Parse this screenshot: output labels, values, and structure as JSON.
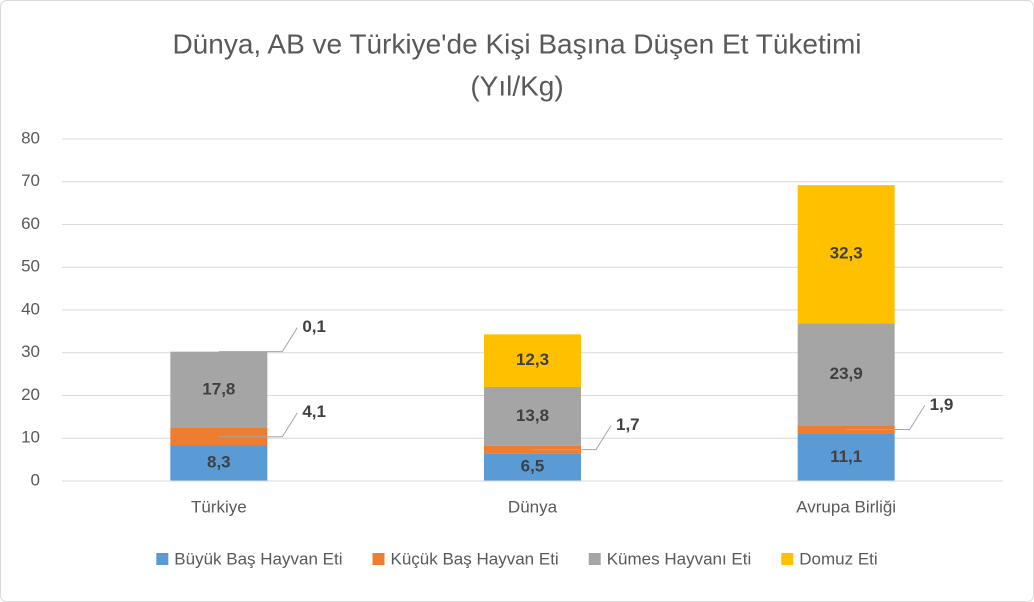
{
  "chart_data": {
    "type": "stacked_bar",
    "title": [
      "Dünya, AB ve Türkiye'de Kişi Başına Düşen Et Tüketimi",
      "(Yıl/Kg)"
    ],
    "categories": [
      "Türkiye",
      "Dünya",
      "Avrupa Birliği"
    ],
    "series": [
      {
        "name": "Büyük Baş Hayvan Eti",
        "color": "#5b9bd5",
        "values": [
          8.3,
          6.5,
          11.1
        ],
        "value_labels": [
          "8,3",
          "6,5",
          "11,1"
        ]
      },
      {
        "name": "Küçük Baş Hayvan Eti",
        "color": "#ed7d31",
        "values": [
          4.1,
          1.7,
          1.9
        ],
        "value_labels": [
          "4,1",
          "1,7",
          "1,9"
        ]
      },
      {
        "name": "Kümes Hayvanı Eti",
        "color": "#a5a5a5",
        "values": [
          17.8,
          13.8,
          23.9
        ],
        "value_labels": [
          "17,8",
          "13,8",
          "23,9"
        ]
      },
      {
        "name": "Domuz Eti",
        "color": "#ffc000",
        "values": [
          0.1,
          12.3,
          32.3
        ],
        "value_labels": [
          "0,1",
          "12,3",
          "32,3"
        ]
      }
    ],
    "ylim": [
      0,
      80
    ],
    "yticks": [
      0,
      10,
      20,
      30,
      40,
      50,
      60,
      70,
      80
    ],
    "grid": true,
    "legend": "bottom"
  }
}
